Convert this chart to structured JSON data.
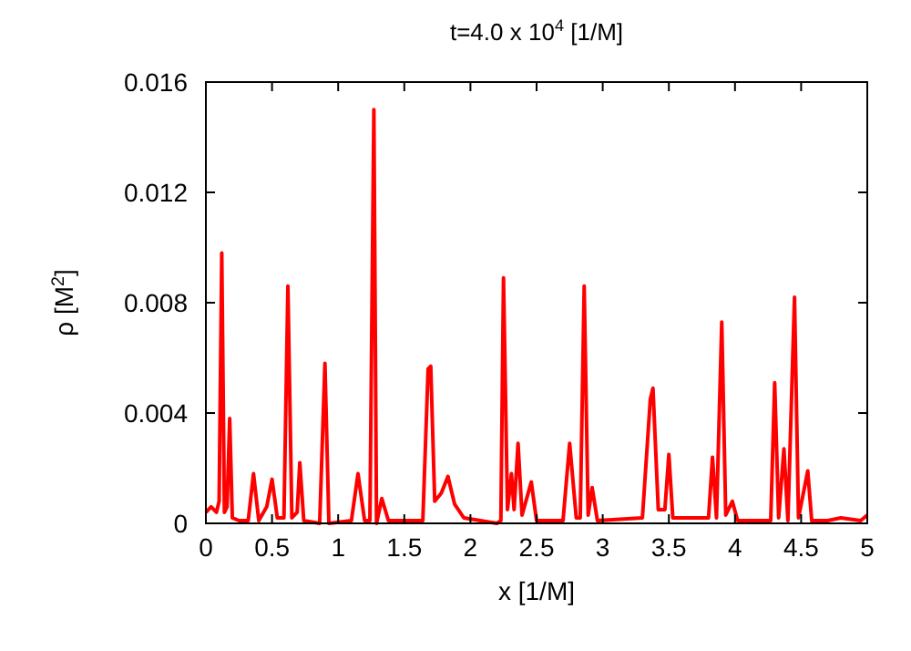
{
  "chart_data": {
    "type": "line",
    "title": "t=4.0 x 10$^{4}$ [1/M]",
    "xlabel": "x [1/M]",
    "ylabel": "ρ [M$^{2}$]",
    "xlim": [
      0,
      5
    ],
    "xticks": [
      0,
      0.5,
      1,
      1.5,
      2,
      2.5,
      3,
      3.5,
      4,
      4.5,
      5
    ],
    "ylim": [
      0,
      0.016
    ],
    "yticks": [
      0,
      0.004,
      0.008,
      0.012,
      0.016
    ],
    "grid": false,
    "line_style": "solid",
    "series": [
      {
        "color": "#ff0000",
        "x": [
          0,
          0.04,
          0.08,
          0.1,
          0.12,
          0.14,
          0.16,
          0.18,
          0.2,
          0.25,
          0.32,
          0.36,
          0.4,
          0.46,
          0.5,
          0.54,
          0.59,
          0.62,
          0.65,
          0.69,
          0.71,
          0.74,
          0.86,
          0.9,
          0.93,
          1.1,
          1.15,
          1.2,
          1.24,
          1.27,
          1.29,
          1.33,
          1.38,
          1.64,
          1.68,
          1.7,
          1.73,
          1.78,
          1.83,
          1.88,
          1.95,
          2.2,
          2.23,
          2.25,
          2.28,
          2.31,
          2.33,
          2.36,
          2.39,
          2.46,
          2.5,
          2.7,
          2.75,
          2.8,
          2.83,
          2.86,
          2.89,
          2.92,
          2.96,
          3.3,
          3.36,
          3.38,
          3.42,
          3.47,
          3.5,
          3.53,
          3.8,
          3.83,
          3.86,
          3.9,
          3.93,
          3.98,
          4.02,
          4.27,
          4.3,
          4.33,
          4.37,
          4.4,
          4.45,
          4.48,
          4.55,
          4.58,
          4.7,
          4.8,
          4.95,
          5
        ],
        "values": [
          0.0004,
          0.0006,
          0.0004,
          0.0008,
          0.0098,
          0.0004,
          0.0006,
          0.0038,
          0.0002,
          0.0001,
          0.0001,
          0.0018,
          0.0001,
          0.0006,
          0.0016,
          0.0002,
          0.0002,
          0.0086,
          0.0002,
          0.0004,
          0.0022,
          0.0001,
          0,
          0.0058,
          0,
          0.0001,
          0.0018,
          0.0001,
          0.0001,
          0.015,
          0,
          0.0009,
          0.0001,
          0.0001,
          0.0056,
          0.0057,
          0.0008,
          0.0011,
          0.0017,
          0.0007,
          0.0002,
          0,
          0.0001,
          0.0089,
          0.0005,
          0.0018,
          0.0005,
          0.0029,
          0.0003,
          0.0015,
          0.0001,
          0.0001,
          0.0029,
          0.0002,
          0.0002,
          0.0086,
          0.0003,
          0.0013,
          0.0001,
          0.0002,
          0.0045,
          0.0049,
          0.0005,
          0.0005,
          0.0025,
          0.0002,
          0.0002,
          0.0024,
          0.0002,
          0.0073,
          0.0003,
          0.0008,
          0.0001,
          0.0001,
          0.0051,
          0.0002,
          0.0027,
          0.0001,
          0.0082,
          0.0002,
          0.0019,
          0.0001,
          0.0001,
          0.0002,
          0.0001,
          0.0003
        ]
      }
    ]
  }
}
